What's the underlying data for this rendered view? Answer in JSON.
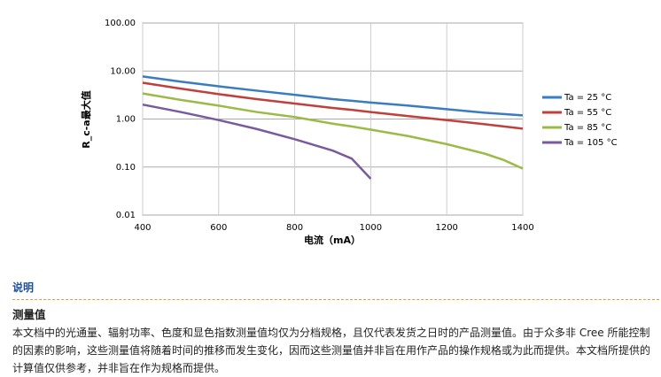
{
  "chart_data": {
    "type": "line",
    "x_label": "电流（mA）",
    "y_label": "R_c-a最大值",
    "x": [
      400,
      500,
      600,
      700,
      800,
      900,
      950,
      1000,
      1100,
      1200,
      1300,
      1350,
      1400
    ],
    "series": [
      {
        "name": "Ta = 25 °C",
        "color": "#3a7cc0",
        "values": [
          7.7,
          6.0,
          4.8,
          3.9,
          3.2,
          2.6,
          2.4,
          2.2,
          1.9,
          1.6,
          1.35,
          1.27,
          1.19
        ]
      },
      {
        "name": "Ta = 55 °C",
        "color": "#c0403c",
        "values": [
          5.7,
          4.3,
          3.3,
          2.6,
          2.1,
          1.7,
          1.55,
          1.4,
          1.15,
          0.95,
          0.78,
          0.7,
          0.63
        ]
      },
      {
        "name": "Ta = 85 °C",
        "color": "#9bbb47",
        "values": [
          3.4,
          2.5,
          1.9,
          1.4,
          1.1,
          0.8,
          0.7,
          0.6,
          0.44,
          0.3,
          0.19,
          0.14,
          0.093
        ]
      },
      {
        "name": "Ta = 105 °C",
        "color": "#7a5a9e",
        "values": [
          2.0,
          1.4,
          0.95,
          0.62,
          0.38,
          0.22,
          0.15,
          0.057,
          null,
          null,
          null,
          null,
          null
        ]
      }
    ],
    "xlim": [
      400,
      1400
    ],
    "xticks": [
      400,
      600,
      800,
      1000,
      1200,
      1400
    ],
    "ylim": [
      0.01,
      100
    ],
    "yticks": [
      0.01,
      {
        "value": 0.1,
        "label": "0.10"
      },
      {
        "value": 1,
        "label": "1.00"
      },
      {
        "value": 10,
        "label": "10.00"
      },
      {
        "value": 100,
        "label": "100.00"
      }
    ],
    "log_y": true,
    "grid": true,
    "legend": "right"
  },
  "notes": {
    "heading": "说明",
    "subheading": "测量值",
    "paragraph": "本文档中的光通量、辐射功率、色度和显色指数测量值均仅为分档规格，且仅代表发货之日时的产品测量值。由于众多非 Cree 所能控制的因素的影响，这些测量值将随着时间的推移而发生变化，因而这些测量值并非旨在用作产品的操作规格或为此而提供。本文档所提供的计算值仅供参考，并非旨在作为规格而提供。"
  }
}
